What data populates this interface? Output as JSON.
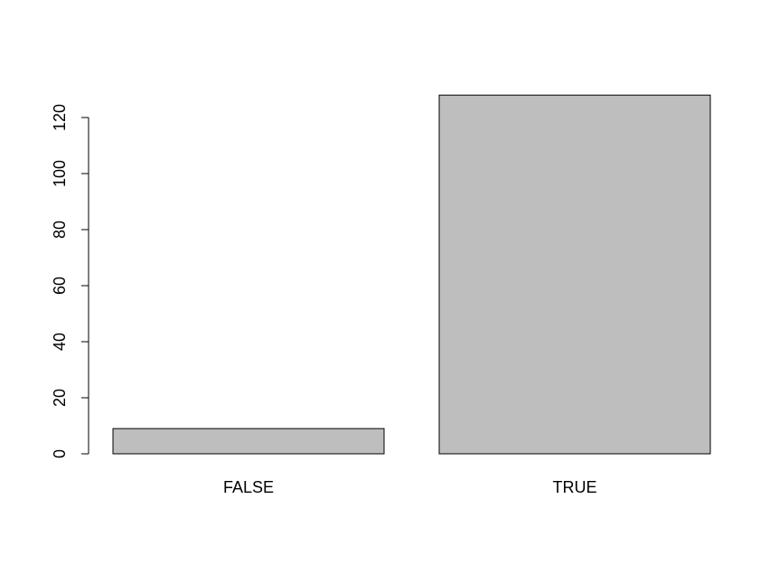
{
  "chart_data": {
    "type": "bar",
    "categories": [
      "FALSE",
      "TRUE"
    ],
    "values": [
      9,
      128
    ],
    "title": "",
    "xlabel": "",
    "ylabel": "",
    "ylim": [
      0,
      128
    ],
    "yticks": [
      0,
      20,
      40,
      60,
      80,
      100,
      120
    ],
    "ytick_labels": [
      "0",
      "20",
      "40",
      "60",
      "80",
      "100",
      "120"
    ],
    "grid": false,
    "bar_color": "#bebebe",
    "axis_color": "#000000"
  }
}
